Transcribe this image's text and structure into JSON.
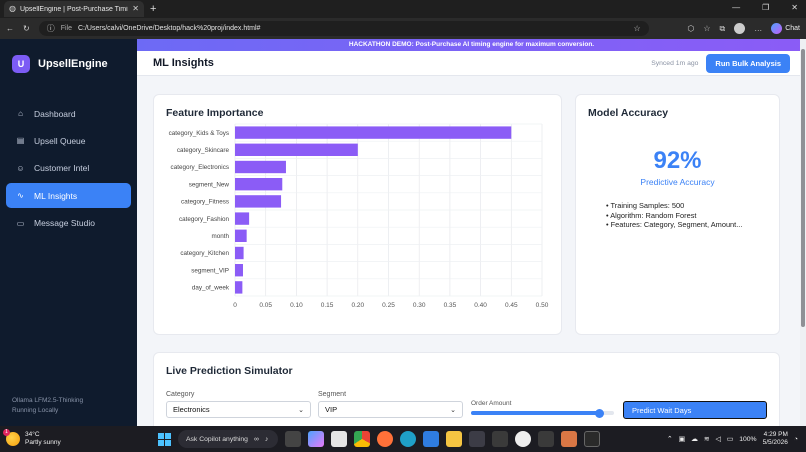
{
  "browser": {
    "tab_title": "UpsellEngine | Post-Purchase Timi",
    "url_prefix": "File",
    "url": "C:/Users/calvi/OneDrive/Desktop/hack%20proj/index.html#",
    "chat_label": "Chat"
  },
  "sidebar": {
    "logo_letter": "U",
    "brand": "UpsellEngine",
    "items": [
      {
        "label": "Dashboard",
        "icon": "home-icon",
        "active": false
      },
      {
        "label": "Upsell Queue",
        "icon": "shopping-bag-icon",
        "active": false
      },
      {
        "label": "Customer Intel",
        "icon": "users-icon",
        "active": false
      },
      {
        "label": "ML Insights",
        "icon": "chart-line-icon",
        "active": true
      },
      {
        "label": "Message Studio",
        "icon": "message-icon",
        "active": false
      }
    ],
    "footer_line1": "Ollama LFM2.5-Thinking",
    "footer_line2": "Running Locally"
  },
  "banner": "HACKATHON DEMO: Post-Purchase AI timing engine for maximum conversion.",
  "header": {
    "title": "ML Insights",
    "synced": "Synced 1m ago",
    "bulk_button": "Run Bulk Analysis"
  },
  "feature_card": {
    "title": "Feature Importance"
  },
  "accuracy_card": {
    "title": "Model Accuracy",
    "value": "92%",
    "caption": "Predictive Accuracy",
    "details": [
      "Training Samples: 500",
      "Algorithm: Random Forest",
      "Features: Category, Segment, Amount..."
    ]
  },
  "simulator": {
    "title": "Live Prediction Simulator",
    "category_label": "Category",
    "category_value": "Electronics",
    "segment_label": "Segment",
    "segment_value": "VIP",
    "amount_label": "Order Amount",
    "amount_level": 0.9,
    "predict_button": "Predict Wait Days"
  },
  "taskbar": {
    "temperature": "34°C",
    "condition": "Partly sunny",
    "notification_count": "1",
    "search_placeholder": "Ask Copilot anything",
    "battery": "100%",
    "time": "4:29 PM",
    "date": "5/5/2026"
  },
  "colors": {
    "bar": "#8b5cf6",
    "accent": "#3b82f6",
    "sidebar_bg": "#0f1b2d",
    "banner": "#7c5cf5"
  },
  "chart_data": {
    "type": "bar",
    "orientation": "horizontal",
    "categories": [
      "category_Kids & Toys",
      "category_Skincare",
      "category_Electronics",
      "segment_New",
      "category_Fitness",
      "category_Fashion",
      "month",
      "category_Kitchen",
      "segment_VIP",
      "day_of_week"
    ],
    "values": [
      0.45,
      0.2,
      0.083,
      0.077,
      0.075,
      0.023,
      0.019,
      0.014,
      0.013,
      0.012
    ],
    "xlim": [
      0,
      0.5
    ],
    "xticks": [
      "0",
      "0.05",
      "0.10",
      "0.15",
      "0.20",
      "0.25",
      "0.30",
      "0.35",
      "0.40",
      "0.45",
      "0.50"
    ],
    "grid": true
  }
}
